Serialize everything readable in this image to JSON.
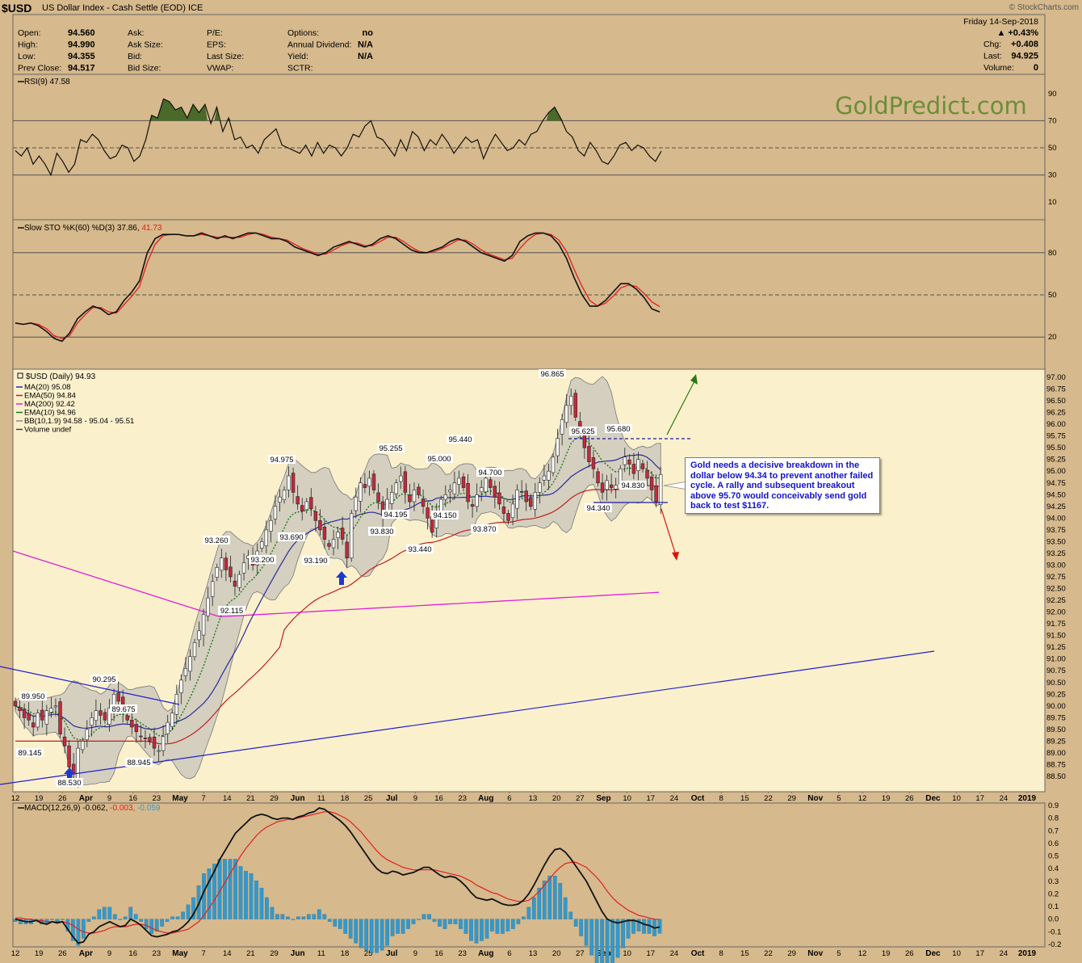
{
  "header": {
    "symbol": "$USD",
    "description": "US Dollar Index - Cash Settle (EOD) ICE",
    "credit": "© StockCharts.com"
  },
  "quote": {
    "left": [
      {
        "label": "Open:",
        "value": "94.560"
      },
      {
        "label": "High:",
        "value": "94.990"
      },
      {
        "label": "Low:",
        "value": "94.355"
      },
      {
        "label": "Prev Close:",
        "value": "94.517"
      }
    ],
    "mid1": [
      "Ask:",
      "Ask Size:",
      "Bid:",
      "Bid Size:"
    ],
    "mid2": [
      "P/E:",
      "EPS:",
      "Last Size:",
      "VWAP:"
    ],
    "mid3": [
      {
        "label": "Options:",
        "value": "no"
      },
      {
        "label": "Annual Dividend:",
        "value": "N/A"
      },
      {
        "label": "Yield:",
        "value": "N/A"
      },
      {
        "label": "SCTR:",
        "value": ""
      }
    ],
    "date": "Friday  14-Sep-2018",
    "change_pct": "▲ +0.43%",
    "right": [
      {
        "label": "Chg:",
        "value": "+0.408"
      },
      {
        "label": "Last:",
        "value": "94.925"
      },
      {
        "label": "Volume:",
        "value": "0"
      }
    ]
  },
  "watermark": "GoldPredict.com",
  "annotation": " Gold needs a decisive breakdown in the dollar below 94.34 to prevent another failed cycle. A rally and subsequent breakout above 95.70 would conceivably send gold back to test $1167.",
  "colors": {
    "background": "#d6b98c",
    "price_panel": "#fbf0cc",
    "up_candle": "#ffffff",
    "down_candle": "#c8283c",
    "ma20": "#2a2a9a",
    "ema50": "#c02020",
    "ma200": "#e020d8",
    "ema10": "#1a7a1a",
    "bb_fill": "#b4b4b4",
    "trendline": "#2020d0",
    "arrow_up": "#2a7a10",
    "arrow_down": "#e01010",
    "marker": "#1a3acf",
    "macd_hist": "#3399cc"
  },
  "chart_data": [
    {
      "type": "line",
      "title": "RSI(9) 47.58",
      "last": 47.58,
      "ylim": [
        0,
        100
      ],
      "ticks": [
        "90",
        "70",
        "50",
        "30",
        "10"
      ],
      "values": [
        48,
        44,
        50,
        38,
        44,
        38,
        30,
        46,
        40,
        32,
        38,
        56,
        54,
        60,
        56,
        48,
        42,
        44,
        52,
        50,
        40,
        44,
        56,
        74,
        72,
        86,
        84,
        78,
        80,
        72,
        82,
        76,
        82,
        68,
        80,
        62,
        72,
        56,
        58,
        50,
        52,
        46,
        56,
        60,
        64,
        52,
        50,
        48,
        46,
        52,
        44,
        54,
        46,
        52,
        50,
        44,
        50,
        60,
        58,
        66,
        70,
        58,
        56,
        50,
        44,
        56,
        48,
        62,
        58,
        48,
        56,
        52,
        60,
        54,
        46,
        52,
        58,
        54,
        56,
        42,
        52,
        60,
        54,
        48,
        50,
        56,
        52,
        60,
        62,
        70,
        76,
        80,
        72,
        62,
        58,
        48,
        44,
        54,
        48,
        40,
        38,
        44,
        52,
        54,
        48,
        52,
        50,
        44,
        40,
        47.58
      ]
    },
    {
      "type": "line",
      "title": "Slow STO %K(60) %D(3) 37.86, 41.73",
      "k_last": 37.86,
      "d_last": 41.73,
      "ylim": [
        0,
        100
      ],
      "ticks": [
        "80",
        "50",
        "20"
      ],
      "series": [
        {
          "name": "%K(60)",
          "values": [
            30,
            29,
            30,
            28,
            24,
            19,
            17,
            23,
            33,
            38,
            42,
            40,
            36,
            38,
            46,
            52,
            60,
            80,
            90,
            93,
            93,
            93,
            92,
            92,
            94,
            92,
            90,
            92,
            90,
            92,
            94,
            94,
            92,
            90,
            90,
            88,
            84,
            82,
            80,
            78,
            80,
            84,
            86,
            88,
            86,
            84,
            86,
            90,
            92,
            90,
            86,
            82,
            80,
            80,
            82,
            84,
            88,
            90,
            88,
            84,
            80,
            78,
            76,
            74,
            78,
            88,
            92,
            94,
            94,
            92,
            86,
            76,
            62,
            50,
            42,
            42,
            46,
            52,
            58,
            58,
            54,
            48,
            40,
            37.86
          ]
        },
        {
          "name": "%D(3)",
          "values": [
            30,
            29,
            30,
            29,
            26,
            21,
            19,
            21,
            30,
            36,
            41,
            41,
            38,
            37,
            43,
            49,
            56,
            73,
            86,
            92,
            93,
            93,
            92,
            92,
            93,
            92,
            91,
            91,
            91,
            91,
            93,
            94,
            93,
            91,
            90,
            89,
            86,
            83,
            81,
            79,
            79,
            82,
            85,
            87,
            87,
            85,
            85,
            88,
            91,
            91,
            88,
            84,
            81,
            80,
            81,
            83,
            86,
            89,
            89,
            86,
            82,
            79,
            77,
            75,
            76,
            83,
            89,
            93,
            94,
            93,
            89,
            81,
            68,
            56,
            46,
            42,
            44,
            49,
            55,
            57,
            56,
            51,
            45,
            41.73
          ]
        }
      ]
    },
    {
      "type": "candlestick",
      "title": "$USD (Daily) 94.93",
      "legend": [
        "MA(20) 95.08",
        "EMA(50) 94.84",
        "MA(200) 92.42",
        "EMA(10) 94.96",
        "BB(10,1.9) 94.58 - 95.04 - 95.51",
        "Volume undef"
      ],
      "ylim": [
        88.25,
        97.0
      ],
      "y_ticks": [
        "97.00",
        "96.75",
        "96.50",
        "96.25",
        "96.00",
        "95.75",
        "95.50",
        "95.25",
        "95.00",
        "94.75",
        "94.50",
        "94.25",
        "94.00",
        "93.75",
        "93.50",
        "93.25",
        "93.00",
        "92.75",
        "92.50",
        "92.25",
        "92.00",
        "91.75",
        "91.50",
        "91.25",
        "91.00",
        "90.75",
        "90.50",
        "90.25",
        "90.00",
        "89.75",
        "89.50",
        "89.25",
        "89.00",
        "88.75",
        "88.50"
      ],
      "x_ticks": [
        "12",
        "19",
        "26",
        "Apr",
        "9",
        "16",
        "23",
        "May",
        "7",
        "14",
        "21",
        "29",
        "Jun",
        "11",
        "18",
        "25",
        "Jul",
        "9",
        "16",
        "23",
        "Aug",
        "6",
        "13",
        "20",
        "27",
        "Sep",
        "10",
        "17",
        "24",
        "Oct",
        "8",
        "15",
        "22",
        "29",
        "Nov",
        "5",
        "12",
        "19",
        "26",
        "Dec",
        "10",
        "17",
        "24",
        "2019"
      ],
      "price_labels": [
        "96.865",
        "95.625",
        "95.680",
        "95.440",
        "95.255",
        "95.000",
        "94.975",
        "94.700",
        "94.830",
        "94.340",
        "94.195",
        "94.150",
        "93.830",
        "93.870",
        "93.690",
        "93.440",
        "93.260",
        "93.200",
        "93.190",
        "92.115",
        "90.295",
        "89.950",
        "89.675",
        "89.145",
        "88.945",
        "88.530"
      ],
      "close": [
        90.0,
        89.9,
        89.75,
        89.7,
        89.55,
        89.85,
        89.7,
        89.9,
        89.95,
        90.0,
        89.4,
        89.15,
        88.7,
        88.55,
        89.1,
        89.25,
        89.5,
        89.75,
        89.9,
        89.8,
        89.7,
        89.95,
        90.25,
        90.1,
        89.85,
        89.7,
        89.55,
        89.45,
        89.35,
        89.3,
        89.25,
        89.1,
        89.05,
        89.35,
        89.65,
        89.85,
        90.25,
        90.55,
        90.8,
        91.05,
        91.35,
        91.6,
        91.95,
        92.3,
        92.65,
        92.95,
        93.15,
        92.9,
        92.75,
        92.55,
        92.8,
        93.05,
        93.2,
        93.0,
        93.3,
        93.5,
        93.75,
        93.95,
        94.25,
        94.45,
        94.6,
        94.9,
        94.55,
        94.3,
        94.15,
        94.35,
        94.2,
        93.95,
        93.75,
        93.55,
        93.4,
        93.55,
        93.7,
        93.55,
        93.15,
        94.1,
        94.45,
        94.75,
        94.65,
        94.85,
        94.6,
        94.35,
        94.05,
        94.4,
        94.55,
        94.75,
        94.9,
        94.55,
        94.35,
        94.6,
        94.5,
        94.25,
        94.0,
        93.7,
        94.15,
        94.4,
        94.5,
        94.6,
        94.75,
        94.85,
        94.65,
        94.35,
        94.25,
        94.5,
        94.65,
        94.85,
        94.65,
        94.45,
        94.3,
        94.1,
        93.95,
        94.3,
        94.6,
        94.55,
        94.35,
        94.25,
        94.55,
        94.75,
        94.9,
        95.0,
        95.3,
        95.7,
        96.1,
        96.4,
        96.6,
        96.15,
        95.85,
        95.5,
        95.2,
        95.05,
        94.75,
        94.55,
        94.8,
        94.65,
        94.7,
        95.05,
        95.3,
        95.15,
        94.95,
        95.25,
        95.05,
        94.85,
        94.6,
        94.35,
        94.93
      ]
    },
    {
      "type": "line",
      "title": "MACD(12,26,9) -0.062, -0.003, -0.059",
      "macd_last": -0.062,
      "signal_last": -0.003,
      "hist_last": -0.059,
      "ylim": [
        -0.2,
        0.9
      ],
      "ticks": [
        "0.9",
        "0.8",
        "0.7",
        "0.6",
        "0.5",
        "0.4",
        "0.3",
        "0.2",
        "0.1",
        "0.0",
        "-0.1",
        "-0.2"
      ],
      "series": [
        {
          "name": "MACD(12,26,9)",
          "values": [
            0.0,
            -0.01,
            -0.02,
            -0.02,
            -0.01,
            -0.03,
            -0.04,
            -0.02,
            -0.03,
            -0.02,
            -0.08,
            -0.14,
            -0.19,
            -0.18,
            -0.12,
            -0.1,
            -0.06,
            -0.04,
            -0.02,
            -0.04,
            -0.06,
            -0.05,
            0.0,
            -0.02,
            -0.05,
            -0.09,
            -0.13,
            -0.14,
            -0.13,
            -0.12,
            -0.1,
            -0.09,
            -0.06,
            -0.02,
            0.04,
            0.12,
            0.22,
            0.3,
            0.38,
            0.47,
            0.54,
            0.61,
            0.68,
            0.72,
            0.76,
            0.8,
            0.82,
            0.83,
            0.82,
            0.8,
            0.79,
            0.8,
            0.8,
            0.79,
            0.81,
            0.82,
            0.84,
            0.85,
            0.88,
            0.87,
            0.84,
            0.81,
            0.78,
            0.74,
            0.69,
            0.63,
            0.57,
            0.51,
            0.45,
            0.4,
            0.37,
            0.36,
            0.38,
            0.37,
            0.35,
            0.36,
            0.37,
            0.39,
            0.41,
            0.41,
            0.38,
            0.35,
            0.33,
            0.34,
            0.33,
            0.3,
            0.26,
            0.21,
            0.17,
            0.16,
            0.15,
            0.16,
            0.14,
            0.12,
            0.11,
            0.11,
            0.12,
            0.15,
            0.2,
            0.27,
            0.35,
            0.43,
            0.5,
            0.55,
            0.56,
            0.53,
            0.48,
            0.42,
            0.36,
            0.3,
            0.22,
            0.14,
            0.06,
            0.0,
            -0.02,
            -0.03,
            -0.02,
            -0.01,
            -0.01,
            -0.02,
            -0.04,
            -0.05,
            -0.07,
            -0.062
          ]
        },
        {
          "name": "Signal",
          "values": [
            0.01,
            0.01,
            0.0,
            0.0,
            -0.01,
            -0.01,
            -0.02,
            -0.02,
            -0.02,
            -0.02,
            -0.03,
            -0.05,
            -0.08,
            -0.1,
            -0.11,
            -0.11,
            -0.1,
            -0.09,
            -0.07,
            -0.06,
            -0.06,
            -0.06,
            -0.05,
            -0.04,
            -0.04,
            -0.05,
            -0.07,
            -0.09,
            -0.1,
            -0.11,
            -0.11,
            -0.1,
            -0.09,
            -0.08,
            -0.05,
            -0.02,
            0.03,
            0.09,
            0.15,
            0.22,
            0.29,
            0.36,
            0.43,
            0.5,
            0.56,
            0.61,
            0.66,
            0.7,
            0.73,
            0.75,
            0.77,
            0.78,
            0.79,
            0.79,
            0.8,
            0.81,
            0.82,
            0.83,
            0.84,
            0.85,
            0.85,
            0.84,
            0.82,
            0.8,
            0.77,
            0.73,
            0.69,
            0.64,
            0.59,
            0.54,
            0.5,
            0.47,
            0.45,
            0.43,
            0.41,
            0.4,
            0.39,
            0.39,
            0.39,
            0.39,
            0.39,
            0.38,
            0.37,
            0.36,
            0.35,
            0.34,
            0.32,
            0.3,
            0.27,
            0.25,
            0.23,
            0.21,
            0.2,
            0.18,
            0.16,
            0.15,
            0.14,
            0.14,
            0.15,
            0.18,
            0.22,
            0.27,
            0.32,
            0.37,
            0.41,
            0.44,
            0.45,
            0.45,
            0.43,
            0.41,
            0.37,
            0.33,
            0.28,
            0.22,
            0.17,
            0.13,
            0.1,
            0.07,
            0.05,
            0.03,
            0.02,
            0.01,
            0.0,
            -0.003
          ]
        }
      ]
    }
  ]
}
